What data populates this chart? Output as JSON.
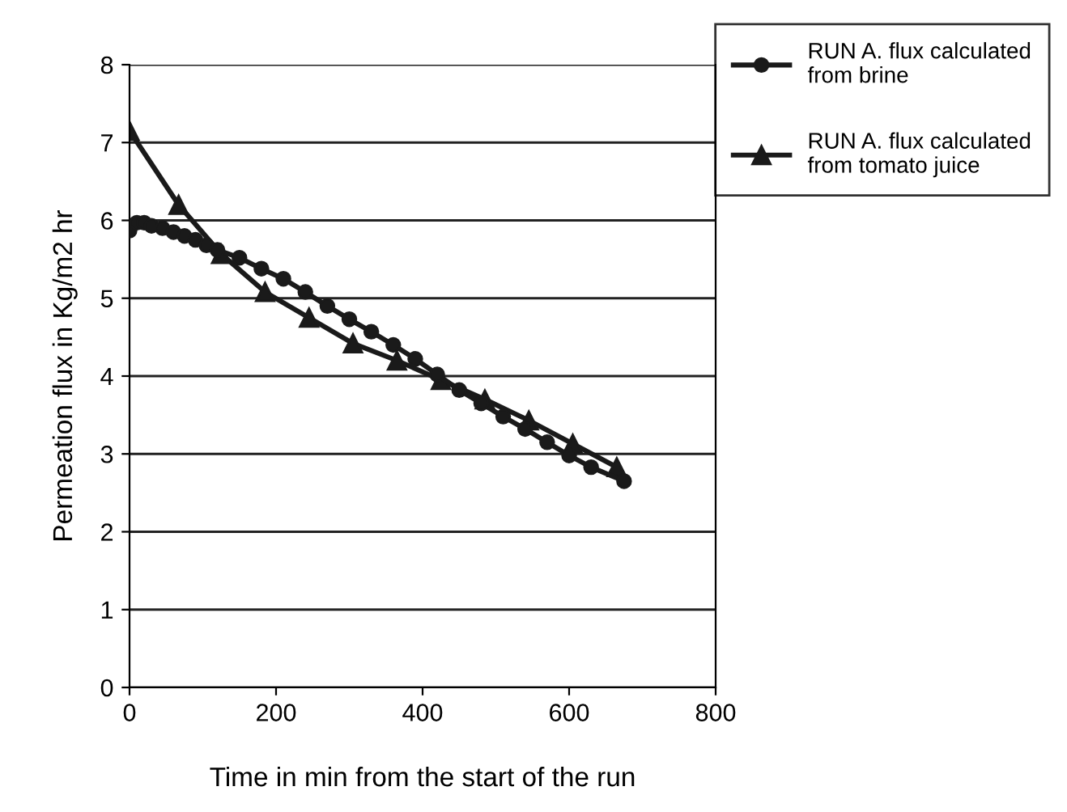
{
  "chart_data": {
    "type": "line",
    "xlabel": "Time in min from the start of the run",
    "ylabel": "Permeation flux in Kg/m2 hr",
    "xlim": [
      0,
      800
    ],
    "xticks": [
      0,
      200,
      400,
      600,
      800
    ],
    "ylim": [
      0,
      8
    ],
    "yticks": [
      0,
      1,
      2,
      3,
      4,
      5,
      6,
      7,
      8
    ],
    "grid": "y",
    "legend": "top right",
    "series": [
      {
        "name": "RUN A. flux calculated from brine",
        "color": "#1a1a1a",
        "marker": "circle",
        "x": [
          0,
          10,
          20,
          30,
          45,
          60,
          75,
          90,
          105,
          120,
          150,
          180,
          210,
          240,
          270,
          300,
          330,
          360,
          390,
          420,
          450,
          480,
          510,
          540,
          570,
          600,
          630,
          675
        ],
        "values": [
          5.87,
          5.97,
          5.97,
          5.93,
          5.9,
          5.85,
          5.8,
          5.75,
          5.68,
          5.62,
          5.52,
          5.38,
          5.25,
          5.08,
          4.9,
          4.73,
          4.57,
          4.4,
          4.22,
          4.02,
          3.82,
          3.65,
          3.48,
          3.32,
          3.15,
          2.98,
          2.83,
          2.65
        ]
      },
      {
        "name": "RUN A. flux calculated from tomato juice",
        "color": "#1a1a1a",
        "marker": "triangle",
        "x": [
          0,
          67,
          125,
          185,
          245,
          305,
          365,
          425,
          485,
          545,
          605,
          665
        ],
        "values": [
          7.15,
          6.2,
          5.57,
          5.08,
          4.75,
          4.42,
          4.2,
          3.95,
          3.7,
          3.43,
          3.13,
          2.83
        ]
      }
    ]
  }
}
